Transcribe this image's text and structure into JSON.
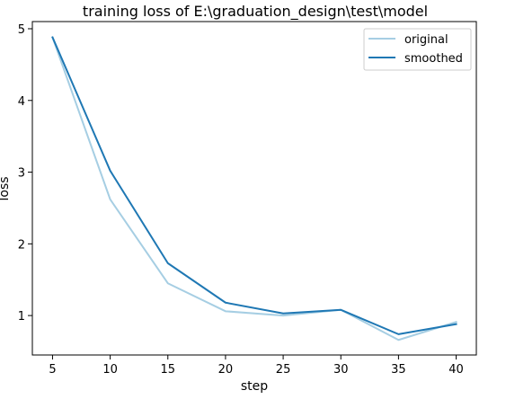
{
  "chart_data": {
    "type": "line",
    "title": "training loss of E:\\graduation_design\\test\\model",
    "xlabel": "step",
    "ylabel": "loss",
    "x": [
      5,
      10,
      15,
      20,
      25,
      30,
      35,
      40
    ],
    "xticks": [
      "5",
      "10",
      "15",
      "20",
      "25",
      "30",
      "35",
      "40"
    ],
    "yticks": [
      "1",
      "2",
      "3",
      "4",
      "5"
    ],
    "xlim": [
      3.25,
      41.75
    ],
    "ylim": [
      0.45,
      5.1
    ],
    "grid": false,
    "legend_position": "top-right",
    "series": [
      {
        "name": "original",
        "color": "#a6cee3",
        "values": [
          4.88,
          2.62,
          1.45,
          1.06,
          1.0,
          1.08,
          0.66,
          0.91
        ]
      },
      {
        "name": "smoothed",
        "color": "#1f78b4",
        "values": [
          4.88,
          3.02,
          1.73,
          1.18,
          1.03,
          1.08,
          0.74,
          0.88
        ]
      }
    ]
  }
}
